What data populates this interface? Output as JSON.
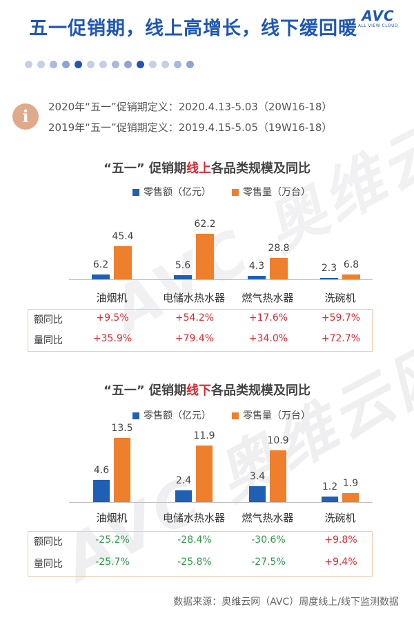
{
  "title": "五一促销期，线上高增长，线下缓回暖",
  "logo": {
    "main": "AVC",
    "sub": "ALL VIEW CLOUD"
  },
  "watermark": "AVC 奥维云网",
  "watermark_sub": "ALL VIEW CLOUD",
  "definitions": [
    "2020年“五一”促销期定义：2020.4.13-5.03（20W16-18）",
    "2019年“五一”促销期定义：2019.4.15-5.05（19W16-18）"
  ],
  "colors": {
    "blue": "#1f5fb4",
    "orange": "#ee7f2d",
    "title_blue": "#1f57b7",
    "red": "#e0262e",
    "green": "#2f9a4a"
  },
  "dots": [
    "#c5cfe6",
    "#c5cfe6",
    "#aab9dc",
    "#8fa4d2",
    "#1f57b7",
    "#c5cfe6",
    "#c5cfe6",
    "#aab9dc",
    "#8fa4d2",
    "#1f57b7",
    "#c5cfe6",
    "#c5cfe6",
    "#aab9dc",
    "#8fa4d2"
  ],
  "source": "数据来源：奥维云网（AVC）周度线上/线下监测数据",
  "chart_data": [
    {
      "type": "bar",
      "title_pre": "“五一” 促销期",
      "title_hi": "线上",
      "title_post": "各品类规模及同比",
      "categories": [
        "油烟机",
        "电储水热水器",
        "燃气热水器",
        "洗碗机"
      ],
      "series": [
        {
          "name": "零售额（亿元）",
          "values": [
            6.2,
            5.6,
            4.3,
            2.3
          ]
        },
        {
          "name": "零售量（万台）",
          "values": [
            45.4,
            62.2,
            28.8,
            6.8
          ]
        }
      ],
      "ymax": 62.2,
      "table": [
        {
          "label": "额同比",
          "values": [
            "+9.5%",
            "+54.2%",
            "+17.6%",
            "+59.7%"
          ]
        },
        {
          "label": "量同比",
          "values": [
            "+35.9%",
            "+79.4%",
            "+34.0%",
            "+72.7%"
          ]
        }
      ]
    },
    {
      "type": "bar",
      "title_pre": "“五一” 促销期",
      "title_hi": "线下",
      "title_post": "各品类规模及同比",
      "categories": [
        "油烟机",
        "电储水热水器",
        "燃气热水器",
        "洗碗机"
      ],
      "series": [
        {
          "name": "零售额（亿元）",
          "values": [
            4.6,
            2.4,
            3.4,
            1.2
          ]
        },
        {
          "name": "零售量（万台）",
          "values": [
            13.5,
            11.9,
            10.9,
            1.9
          ]
        }
      ],
      "ymax": 13.5,
      "table": [
        {
          "label": "额同比",
          "values": [
            "-25.2%",
            "-28.4%",
            "-30.6%",
            "+9.8%"
          ]
        },
        {
          "label": "量同比",
          "values": [
            "-25.7%",
            "-25.8%",
            "-27.5%",
            "+9.4%"
          ]
        }
      ]
    }
  ]
}
